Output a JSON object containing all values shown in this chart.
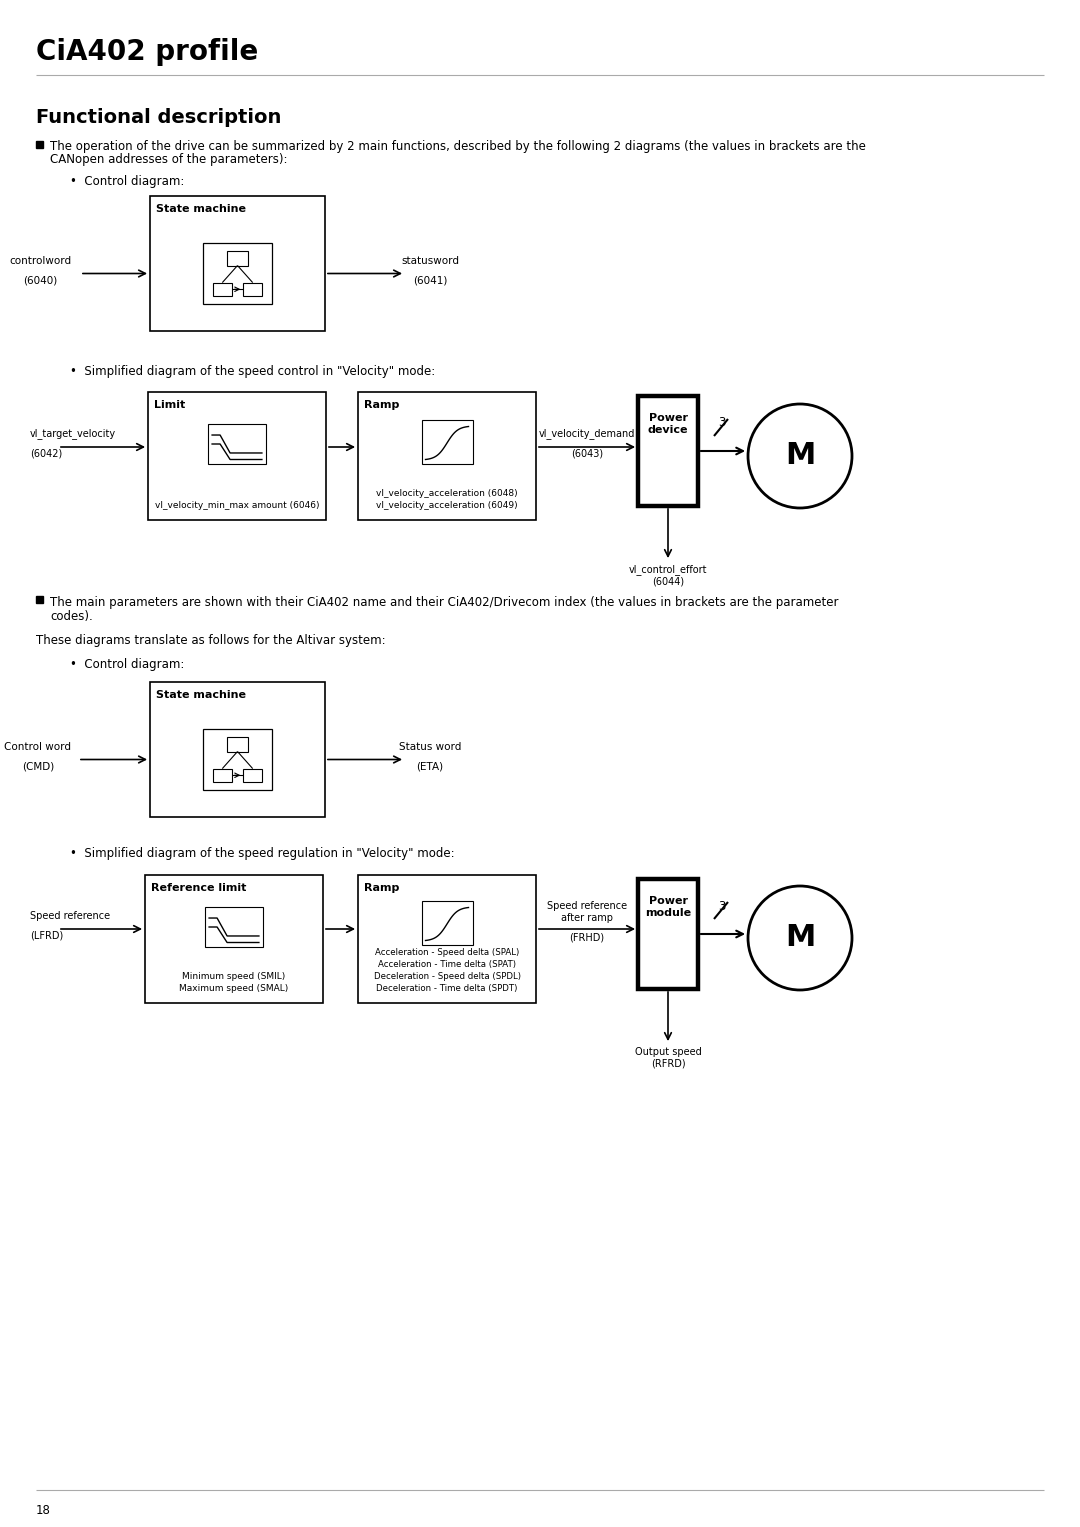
{
  "title": "CiA402 profile",
  "section_title": "Functional description",
  "bullet1_line1": "The operation of the drive can be summarized by 2 main functions, described by the following 2 diagrams (the values in brackets are the",
  "bullet1_line2": "CANopen addresses of the parameters):",
  "bullet1_sub1": "Control diagram:",
  "bullet1_sub2": "Simplified diagram of the speed control in \"Velocity\" mode:",
  "bullet2_line1": "The main parameters are shown with their CiA402 name and their CiA402/Drivecom index (the values in brackets are the parameter",
  "bullet2_line2": "codes).",
  "paragraph1": "These diagrams translate as follows for the Altivar system:",
  "bullet3_sub1": "Control diagram:",
  "bullet3_sub2": "Simplified diagram of the speed regulation in \"Velocity\" mode:",
  "page_number": "18",
  "bg_color": "#ffffff"
}
